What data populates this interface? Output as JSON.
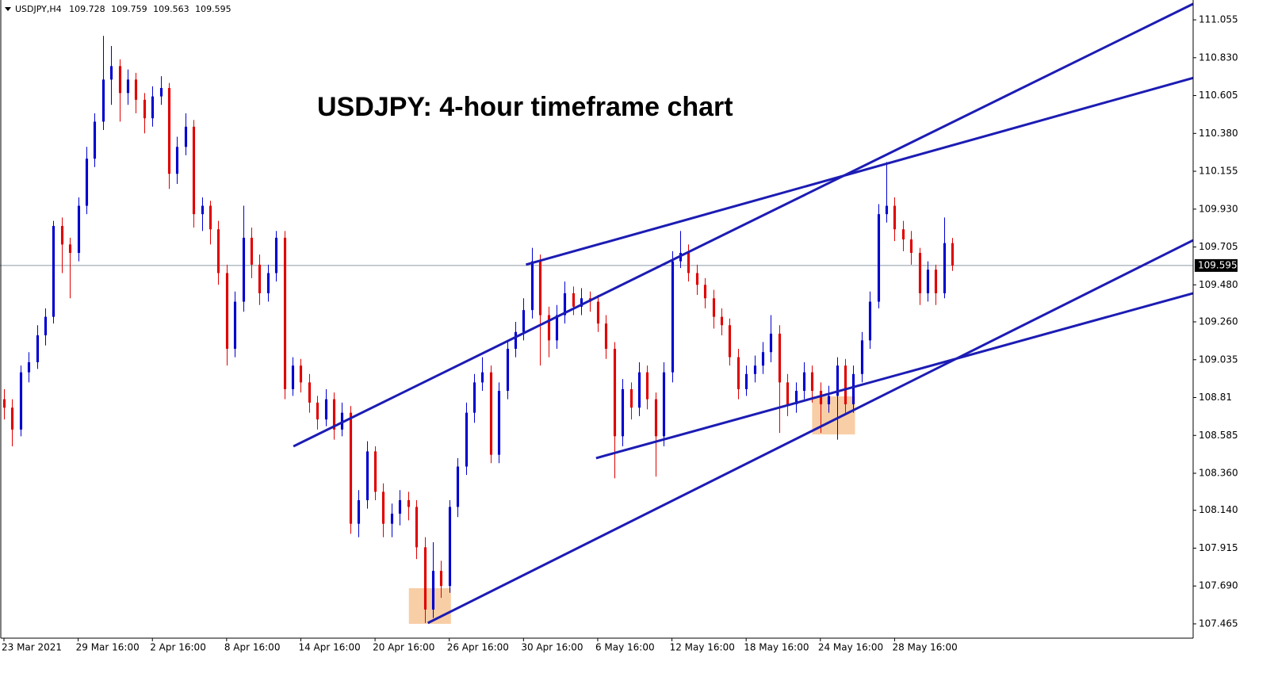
{
  "chart_data": {
    "type": "candlestick",
    "symbol": "USDJPY,H4",
    "title": "USDJPY: 4-hour timeframe chart",
    "up_color": "#0000d0",
    "down_color": "#e00000",
    "line_color": "#1c1cb4",
    "zone_color": "#f7c596",
    "price_line_color": "#8c9aa8",
    "xlim": [
      -0.48,
      144.2
    ],
    "ylim": [
      107.38,
      111.173
    ],
    "xticks": [
      {
        "value": 0,
        "label": "23 Mar 2021"
      },
      {
        "value": 9,
        "label": "29 Mar 16:00"
      },
      {
        "value": 18,
        "label": "2 Apr 16:00"
      },
      {
        "value": 27,
        "label": "8 Apr 16:00"
      },
      {
        "value": 36,
        "label": "14 Apr 16:00"
      },
      {
        "value": 45,
        "label": "20 Apr 16:00"
      },
      {
        "value": 54,
        "label": "26 Apr 16:00"
      },
      {
        "value": 63,
        "label": "30 Apr 16:00"
      },
      {
        "value": 72,
        "label": "6 May 16:00"
      },
      {
        "value": 81,
        "label": "12 May 16:00"
      },
      {
        "value": 90,
        "label": "18 May 16:00"
      },
      {
        "value": 99,
        "label": "24 May 16:00"
      },
      {
        "value": 108,
        "label": "28 May 16:00"
      }
    ],
    "yticks": [
      107.465,
      {
        "value": 107.69,
        "label": "107.690"
      },
      107.915,
      {
        "value": 108.14,
        "label": "108.140"
      },
      {
        "value": 108.36,
        "label": "108.360"
      },
      108.585,
      108.81,
      109.035,
      {
        "value": 109.26,
        "label": "109.260"
      },
      {
        "value": 109.48,
        "label": "109.480"
      },
      109.705,
      {
        "value": 109.93,
        "label": "109.930"
      },
      110.155,
      {
        "value": 110.38,
        "label": "110.380"
      },
      110.605,
      {
        "value": 110.83,
        "label": "110.830"
      },
      111.055
    ],
    "candles": [
      [
        108.8,
        108.86,
        108.68,
        108.75
      ],
      [
        108.75,
        108.8,
        108.52,
        108.62
      ],
      [
        108.62,
        109.0,
        108.58,
        108.96
      ],
      [
        108.96,
        109.08,
        108.9,
        109.02
      ],
      [
        109.02,
        109.24,
        108.98,
        109.18
      ],
      [
        109.18,
        109.34,
        109.12,
        109.29
      ],
      [
        109.29,
        109.86,
        109.25,
        109.83
      ],
      [
        109.83,
        109.88,
        109.55,
        109.72
      ],
      [
        109.72,
        109.76,
        109.4,
        109.67
      ],
      [
        109.67,
        110.0,
        109.62,
        109.95
      ],
      [
        109.95,
        110.3,
        109.9,
        110.23
      ],
      [
        110.23,
        110.5,
        110.18,
        110.45
      ],
      [
        110.45,
        110.96,
        110.4,
        110.7
      ],
      [
        110.7,
        110.9,
        110.55,
        110.78
      ],
      [
        110.78,
        110.82,
        110.45,
        110.62
      ],
      [
        110.62,
        110.76,
        110.55,
        110.7
      ],
      [
        110.7,
        110.74,
        110.5,
        110.58
      ],
      [
        110.58,
        110.62,
        110.38,
        110.47
      ],
      [
        110.47,
        110.66,
        110.42,
        110.6
      ],
      [
        110.6,
        110.72,
        110.55,
        110.65
      ],
      [
        110.65,
        110.68,
        110.05,
        110.14
      ],
      [
        110.14,
        110.36,
        110.08,
        110.3
      ],
      [
        110.3,
        110.5,
        110.25,
        110.42
      ],
      [
        110.42,
        110.46,
        109.82,
        109.9
      ],
      [
        109.9,
        110.0,
        109.8,
        109.95
      ],
      [
        109.95,
        109.98,
        109.72,
        109.81
      ],
      [
        109.81,
        109.86,
        109.48,
        109.55
      ],
      [
        109.55,
        109.6,
        109.0,
        109.1
      ],
      [
        109.1,
        109.44,
        109.05,
        109.38
      ],
      [
        109.38,
        109.95,
        109.32,
        109.76
      ],
      [
        109.76,
        109.82,
        109.52,
        109.6
      ],
      [
        109.6,
        109.66,
        109.36,
        109.43
      ],
      [
        109.43,
        109.6,
        109.38,
        109.55
      ],
      [
        109.55,
        109.8,
        109.5,
        109.76
      ],
      [
        109.76,
        109.8,
        108.8,
        108.86
      ],
      [
        108.86,
        109.05,
        108.82,
        109.0
      ],
      [
        109.0,
        109.04,
        108.84,
        108.9
      ],
      [
        108.9,
        108.95,
        108.72,
        108.78
      ],
      [
        108.78,
        108.82,
        108.62,
        108.68
      ],
      [
        108.68,
        108.86,
        108.64,
        108.8
      ],
      [
        108.8,
        108.84,
        108.56,
        108.62
      ],
      [
        108.62,
        108.78,
        108.58,
        108.72
      ],
      [
        108.72,
        108.76,
        108.0,
        108.06
      ],
      [
        108.06,
        108.26,
        107.98,
        108.2
      ],
      [
        108.2,
        108.55,
        108.15,
        108.49
      ],
      [
        108.49,
        108.52,
        108.2,
        108.25
      ],
      [
        108.25,
        108.3,
        107.98,
        108.06
      ],
      [
        108.06,
        108.18,
        107.98,
        108.12
      ],
      [
        108.12,
        108.26,
        108.05,
        108.2
      ],
      [
        108.2,
        108.25,
        108.08,
        108.16
      ],
      [
        108.16,
        108.2,
        107.85,
        107.92
      ],
      [
        107.92,
        107.98,
        107.47,
        107.55
      ],
      [
        107.55,
        107.95,
        107.5,
        107.78
      ],
      [
        107.78,
        107.84,
        107.62,
        107.69
      ],
      [
        107.69,
        108.2,
        107.65,
        108.16
      ],
      [
        108.16,
        108.45,
        108.1,
        108.4
      ],
      [
        108.4,
        108.78,
        108.35,
        108.72
      ],
      [
        108.72,
        108.95,
        108.66,
        108.9
      ],
      [
        108.9,
        109.05,
        108.85,
        108.96
      ],
      [
        108.96,
        109.0,
        108.42,
        108.47
      ],
      [
        108.47,
        108.9,
        108.42,
        108.85
      ],
      [
        108.85,
        109.15,
        108.8,
        109.1
      ],
      [
        109.1,
        109.26,
        109.05,
        109.2
      ],
      [
        109.2,
        109.4,
        109.15,
        109.33
      ],
      [
        109.33,
        109.7,
        109.28,
        109.62
      ],
      [
        109.62,
        109.66,
        109.0,
        109.3
      ],
      [
        109.3,
        109.35,
        109.05,
        109.15
      ],
      [
        109.15,
        109.36,
        109.1,
        109.3
      ],
      [
        109.3,
        109.5,
        109.25,
        109.43
      ],
      [
        109.43,
        109.47,
        109.3,
        109.35
      ],
      [
        109.35,
        109.46,
        109.3,
        109.4
      ],
      [
        109.4,
        109.44,
        109.32,
        109.38
      ],
      [
        109.38,
        109.42,
        109.2,
        109.25
      ],
      [
        109.25,
        109.3,
        109.04,
        109.1
      ],
      [
        109.1,
        109.14,
        108.33,
        108.58
      ],
      [
        108.58,
        108.92,
        108.52,
        108.86
      ],
      [
        108.86,
        108.9,
        108.68,
        108.75
      ],
      [
        108.75,
        109.02,
        108.7,
        108.96
      ],
      [
        108.96,
        109.0,
        108.74,
        108.8
      ],
      [
        108.8,
        108.84,
        108.34,
        108.58
      ],
      [
        108.58,
        109.02,
        108.52,
        108.96
      ],
      [
        108.96,
        109.68,
        108.9,
        109.62
      ],
      [
        109.62,
        109.8,
        109.58,
        109.67
      ],
      [
        109.67,
        109.72,
        109.5,
        109.55
      ],
      [
        109.55,
        109.6,
        109.42,
        109.48
      ],
      [
        109.48,
        109.52,
        109.34,
        109.4
      ],
      [
        109.4,
        109.45,
        109.22,
        109.29
      ],
      [
        109.29,
        109.34,
        109.18,
        109.24
      ],
      [
        109.24,
        109.28,
        109.0,
        109.05
      ],
      [
        109.05,
        109.1,
        108.8,
        108.86
      ],
      [
        108.86,
        109.0,
        108.82,
        108.95
      ],
      [
        108.95,
        109.06,
        108.9,
        109.0
      ],
      [
        109.0,
        109.14,
        108.95,
        109.08
      ],
      [
        109.08,
        109.3,
        109.02,
        109.19
      ],
      [
        109.19,
        109.24,
        108.6,
        108.9
      ],
      [
        108.9,
        108.95,
        108.7,
        108.77
      ],
      [
        108.77,
        108.9,
        108.72,
        108.85
      ],
      [
        108.85,
        109.02,
        108.8,
        108.96
      ],
      [
        108.96,
        109.0,
        108.78,
        108.85
      ],
      [
        108.85,
        108.9,
        108.6,
        108.77
      ],
      [
        108.77,
        108.88,
        108.72,
        108.82
      ],
      [
        108.82,
        109.05,
        108.56,
        109.0
      ],
      [
        109.0,
        109.04,
        108.72,
        108.77
      ],
      [
        108.77,
        109.0,
        108.72,
        108.95
      ],
      [
        108.95,
        109.2,
        108.9,
        109.15
      ],
      [
        109.15,
        109.44,
        109.1,
        109.38
      ],
      [
        109.38,
        109.96,
        109.34,
        109.9
      ],
      [
        109.9,
        110.21,
        109.85,
        109.95
      ],
      [
        109.95,
        110.0,
        109.74,
        109.81
      ],
      [
        109.81,
        109.86,
        109.68,
        109.75
      ],
      [
        109.75,
        109.8,
        109.6,
        109.67
      ],
      [
        109.67,
        109.7,
        109.36,
        109.43
      ],
      [
        109.43,
        109.62,
        109.38,
        109.57
      ],
      [
        109.57,
        109.6,
        109.36,
        109.43
      ],
      [
        109.43,
        109.88,
        109.4,
        109.728
      ],
      [
        109.728,
        109.759,
        109.563,
        109.595
      ]
    ],
    "trendlines": [
      {
        "x": [
          35.1,
          144.2
        ],
        "y": [
          108.52,
          111.15
        ]
      },
      {
        "x": [
          63.3,
          144.2
        ],
        "y": [
          109.6,
          110.71
        ]
      },
      {
        "x": [
          51.4,
          144.2
        ],
        "y": [
          107.47,
          109.745
        ]
      },
      {
        "x": [
          71.8,
          144.2
        ],
        "y": [
          108.45,
          109.43
        ]
      }
    ],
    "zones": [
      {
        "x": [
          49.1,
          54.2
        ],
        "y": [
          107.465,
          107.677
        ]
      },
      {
        "x": [
          98.0,
          103.2
        ],
        "y": [
          108.591,
          108.817
        ]
      }
    ]
  }
}
